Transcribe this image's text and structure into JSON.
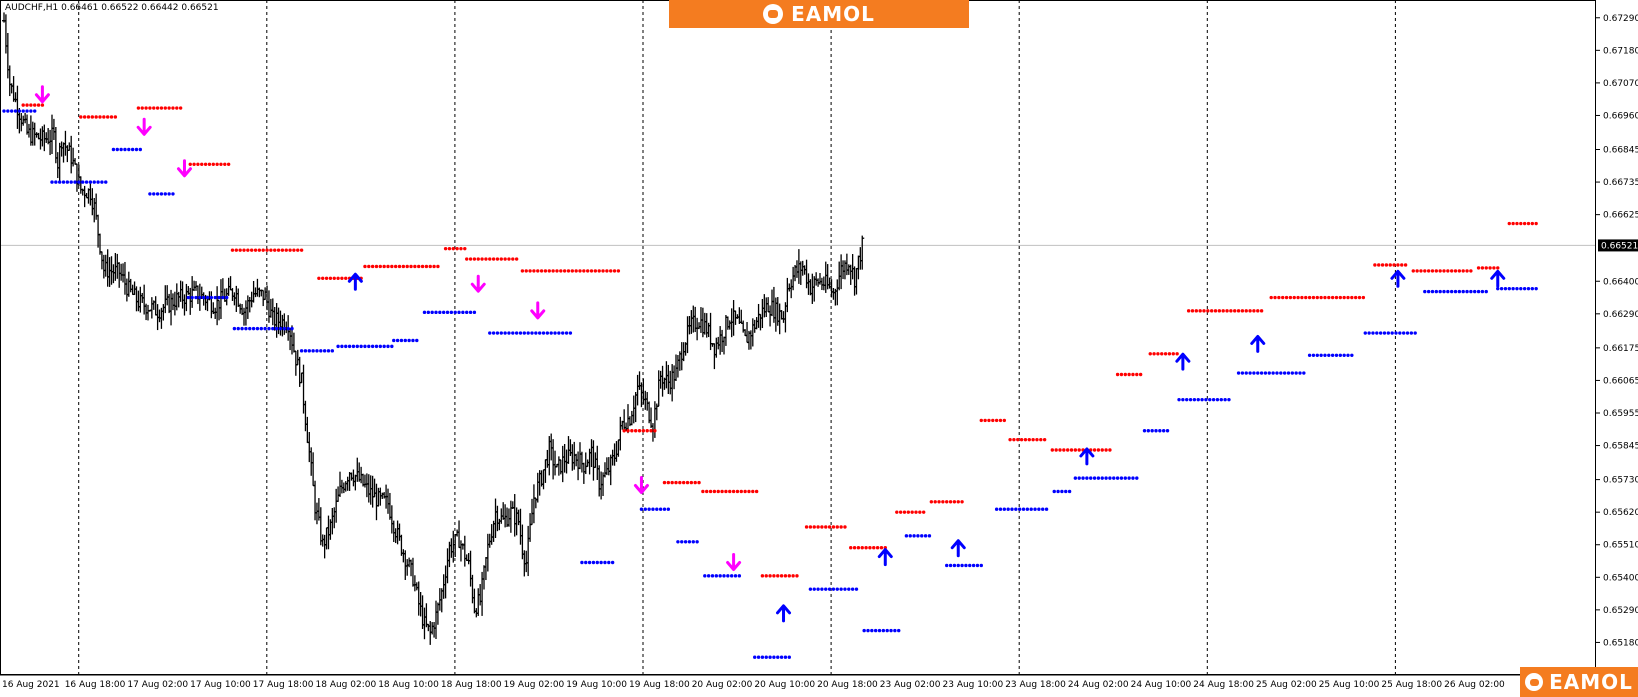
{
  "header": {
    "symbol_line": "AUDCHF,H1  0.66461 0.66522 0.66442 0.66521"
  },
  "brand": {
    "name": "EAMOL"
  },
  "colors": {
    "background": "#ffffff",
    "candle": "#000000",
    "resistance_dots": "#ff0000",
    "support_dots": "#0000ff",
    "sell_arrow": "#ff00ff",
    "buy_arrow": "#0000ff",
    "brand_orange": "#f47c20",
    "price_line": "#c0c0c0"
  },
  "chart_data": {
    "type": "line",
    "instrument": "AUDCHF",
    "timeframe": "H1",
    "ylim": [
      0.6507,
      0.6735
    ],
    "y_ticks": [
      "0.67290",
      "0.67180",
      "0.67070",
      "0.66960",
      "0.66845",
      "0.66735",
      "0.66625",
      "0.66521",
      "0.66400",
      "0.66290",
      "0.66175",
      "0.66065",
      "0.65955",
      "0.65845",
      "0.65730",
      "0.65620",
      "0.65510",
      "0.65400",
      "0.65290",
      "0.65180"
    ],
    "current_price": "0.66521",
    "current_price_value": 0.66521,
    "x_ticks": [
      "16 Aug 2021",
      "16 Aug 18:00",
      "17 Aug 02:00",
      "17 Aug 10:00",
      "17 Aug 18:00",
      "18 Aug 02:00",
      "18 Aug 10:00",
      "18 Aug 18:00",
      "19 Aug 02:00",
      "19 Aug 10:00",
      "19 Aug 18:00",
      "20 Aug 02:00",
      "20 Aug 10:00",
      "20 Aug 18:00",
      "23 Aug 02:00",
      "23 Aug 10:00",
      "23 Aug 18:00",
      "24 Aug 02:00",
      "24 Aug 10:00",
      "24 Aug 18:00",
      "25 Aug 02:00",
      "25 Aug 10:00",
      "25 Aug 18:00",
      "26 Aug 02:00"
    ],
    "bar_count": 240,
    "close_path": [
      [
        0,
        0.6728
      ],
      [
        3,
        0.6707
      ],
      [
        8,
        0.6697
      ],
      [
        12,
        0.669
      ],
      [
        20,
        0.6688
      ],
      [
        26,
        0.6689
      ],
      [
        28,
        0.668
      ],
      [
        30,
        0.6688
      ],
      [
        35,
        0.6682
      ],
      [
        40,
        0.6671
      ],
      [
        45,
        0.667
      ],
      [
        47,
        0.6665
      ],
      [
        52,
        0.6644
      ],
      [
        60,
        0.6643
      ],
      [
        65,
        0.6637
      ],
      [
        70,
        0.6633
      ],
      [
        80,
        0.663
      ],
      [
        90,
        0.6634
      ],
      [
        100,
        0.6636
      ],
      [
        110,
        0.6632
      ],
      [
        120,
        0.6637
      ],
      [
        125,
        0.663
      ],
      [
        130,
        0.6636
      ],
      [
        136,
        0.6635
      ],
      [
        140,
        0.6627
      ],
      [
        148,
        0.6626
      ],
      [
        152,
        0.6614
      ],
      [
        155,
        0.6606
      ],
      [
        158,
        0.6588
      ],
      [
        162,
        0.6564
      ],
      [
        166,
        0.6551
      ],
      [
        170,
        0.6557
      ],
      [
        175,
        0.6569
      ],
      [
        180,
        0.6576
      ],
      [
        185,
        0.6573
      ],
      [
        190,
        0.6569
      ],
      [
        195,
        0.6566
      ],
      [
        200,
        0.6565
      ],
      [
        203,
        0.6558
      ],
      [
        205,
        0.6554
      ],
      [
        210,
        0.6545
      ],
      [
        213,
        0.654
      ],
      [
        216,
        0.6531
      ],
      [
        219,
        0.6524
      ],
      [
        222,
        0.6521
      ],
      [
        225,
        0.6527
      ],
      [
        228,
        0.6535
      ],
      [
        232,
        0.655
      ],
      [
        237,
        0.6553
      ],
      [
        242,
        0.6544
      ],
      [
        245,
        0.653
      ],
      [
        248,
        0.6532
      ],
      [
        252,
        0.655
      ],
      [
        256,
        0.6562
      ],
      [
        260,
        0.6559
      ],
      [
        264,
        0.6562
      ],
      [
        268,
        0.6559
      ],
      [
        270,
        0.655
      ],
      [
        272,
        0.6545
      ],
      [
        276,
        0.6567
      ],
      [
        280,
        0.6574
      ],
      [
        284,
        0.6583
      ],
      [
        288,
        0.6576
      ],
      [
        292,
        0.658
      ],
      [
        297,
        0.6581
      ],
      [
        302,
        0.6578
      ],
      [
        306,
        0.6582
      ],
      [
        310,
        0.6572
      ],
      [
        314,
        0.6575
      ],
      [
        318,
        0.6581
      ],
      [
        322,
        0.6592
      ],
      [
        326,
        0.6594
      ],
      [
        330,
        0.6604
      ],
      [
        334,
        0.6599
      ],
      [
        338,
        0.6592
      ],
      [
        342,
        0.6608
      ],
      [
        346,
        0.6606
      ],
      [
        350,
        0.6609
      ],
      [
        354,
        0.6619
      ],
      [
        358,
        0.6625
      ],
      [
        362,
        0.6627
      ],
      [
        366,
        0.6624
      ],
      [
        370,
        0.6618
      ],
      [
        374,
        0.6622
      ],
      [
        378,
        0.6628
      ],
      [
        382,
        0.6626
      ],
      [
        386,
        0.662
      ],
      [
        390,
        0.6624
      ],
      [
        394,
        0.6629
      ],
      [
        398,
        0.6632
      ],
      [
        402,
        0.663
      ],
      [
        406,
        0.6628
      ],
      [
        408,
        0.6638
      ],
      [
        412,
        0.6643
      ],
      [
        416,
        0.6645
      ],
      [
        420,
        0.6638
      ],
      [
        424,
        0.664
      ],
      [
        428,
        0.6639
      ],
      [
        432,
        0.6636
      ],
      [
        436,
        0.6644
      ],
      [
        440,
        0.6647
      ],
      [
        443,
        0.6641
      ],
      [
        447,
        0.6652
      ]
    ],
    "resistance_dots": [
      {
        "y": 0.66995,
        "x0": 10,
        "x1": 20
      },
      {
        "y": 0.66955,
        "x0": 40,
        "x1": 58
      },
      {
        "y": 0.66985,
        "x0": 70,
        "x1": 92
      },
      {
        "y": 0.66795,
        "x0": 97,
        "x1": 117
      },
      {
        "y": 0.66505,
        "x0": 119,
        "x1": 156
      },
      {
        "y": 0.6641,
        "x0": 164,
        "x1": 187
      },
      {
        "y": 0.6645,
        "x0": 188,
        "x1": 226
      },
      {
        "y": 0.6651,
        "x0": 230,
        "x1": 240
      },
      {
        "y": 0.66475,
        "x0": 241,
        "x1": 268
      },
      {
        "y": 0.66435,
        "x0": 270,
        "x1": 320
      },
      {
        "y": 0.65895,
        "x0": 323,
        "x1": 340
      },
      {
        "y": 0.6572,
        "x0": 344,
        "x1": 362
      },
      {
        "y": 0.6569,
        "x0": 364,
        "x1": 392
      },
      {
        "y": 0.65405,
        "x0": 395,
        "x1": 413
      },
      {
        "y": 0.6557,
        "x0": 418,
        "x1": 438
      },
      {
        "y": 0.655,
        "x0": 441,
        "x1": 460
      },
      {
        "y": 0.6562,
        "x0": 465,
        "x1": 480
      },
      {
        "y": 0.65655,
        "x0": 483,
        "x1": 500
      },
      {
        "y": 0.6593,
        "x0": 509,
        "x1": 522
      },
      {
        "y": 0.65865,
        "x0": 524,
        "x1": 543
      },
      {
        "y": 0.6583,
        "x0": 546,
        "x1": 577
      },
      {
        "y": 0.66085,
        "x0": 580,
        "x1": 593
      },
      {
        "y": 0.66155,
        "x0": 597,
        "x1": 612
      },
      {
        "y": 0.663,
        "x0": 617,
        "x1": 655
      },
      {
        "y": 0.66345,
        "x0": 660,
        "x1": 708
      },
      {
        "y": 0.66455,
        "x0": 714,
        "x1": 730
      },
      {
        "y": 0.66435,
        "x0": 734,
        "x1": 764
      },
      {
        "y": 0.66445,
        "x0": 768,
        "x1": 779
      },
      {
        "y": 0.66595,
        "x0": 784,
        "x1": 798
      }
    ],
    "support_dots": [
      {
        "y": 0.66975,
        "x0": 0,
        "x1": 16
      },
      {
        "y": 0.66735,
        "x0": 25,
        "x1": 54
      },
      {
        "y": 0.66845,
        "x0": 57,
        "x1": 72
      },
      {
        "y": 0.66695,
        "x0": 76,
        "x1": 88
      },
      {
        "y": 0.66345,
        "x0": 96,
        "x1": 116
      },
      {
        "y": 0.6624,
        "x0": 120,
        "x1": 150
      },
      {
        "y": 0.66165,
        "x0": 155,
        "x1": 172
      },
      {
        "y": 0.6618,
        "x0": 174,
        "x1": 202
      },
      {
        "y": 0.662,
        "x0": 203,
        "x1": 216
      },
      {
        "y": 0.66295,
        "x0": 219,
        "x1": 246
      },
      {
        "y": 0.66225,
        "x0": 253,
        "x1": 296
      },
      {
        "y": 0.6545,
        "x0": 301,
        "x1": 318
      },
      {
        "y": 0.6563,
        "x0": 332,
        "x1": 347
      },
      {
        "y": 0.6552,
        "x0": 351,
        "x1": 362
      },
      {
        "y": 0.65405,
        "x0": 365,
        "x1": 383
      },
      {
        "y": 0.6513,
        "x0": 391,
        "x1": 410
      },
      {
        "y": 0.6536,
        "x0": 420,
        "x1": 444
      },
      {
        "y": 0.6522,
        "x0": 448,
        "x1": 466
      },
      {
        "y": 0.6554,
        "x0": 470,
        "x1": 483
      },
      {
        "y": 0.6544,
        "x0": 491,
        "x1": 510
      },
      {
        "y": 0.6563,
        "x0": 517,
        "x1": 543
      },
      {
        "y": 0.6569,
        "x0": 547,
        "x1": 556
      },
      {
        "y": 0.65735,
        "x0": 558,
        "x1": 590
      },
      {
        "y": 0.65895,
        "x0": 594,
        "x1": 606
      },
      {
        "y": 0.66,
        "x0": 612,
        "x1": 638
      },
      {
        "y": 0.6609,
        "x0": 643,
        "x1": 677
      },
      {
        "y": 0.6615,
        "x0": 680,
        "x1": 703
      },
      {
        "y": 0.66225,
        "x0": 709,
        "x1": 735
      },
      {
        "y": 0.66365,
        "x0": 740,
        "x1": 773
      },
      {
        "y": 0.66375,
        "x0": 778,
        "x1": 798
      }
    ],
    "sell_arrows": [
      [
        20,
        0.6703
      ],
      [
        73,
        0.6692
      ],
      [
        94,
        0.6678
      ],
      [
        247,
        0.6639
      ],
      [
        278,
        0.663
      ],
      [
        332,
        0.6571
      ],
      [
        380,
        0.6545
      ]
    ],
    "buy_arrows": [
      [
        183,
        0.664
      ],
      [
        406,
        0.6528
      ],
      [
        459,
        0.6547
      ],
      [
        497,
        0.655
      ],
      [
        564,
        0.6581
      ],
      [
        614,
        0.6613
      ],
      [
        653,
        0.6619
      ],
      [
        726,
        0.6641
      ],
      [
        778,
        0.6641
      ]
    ],
    "grid": true,
    "legend": "none"
  }
}
